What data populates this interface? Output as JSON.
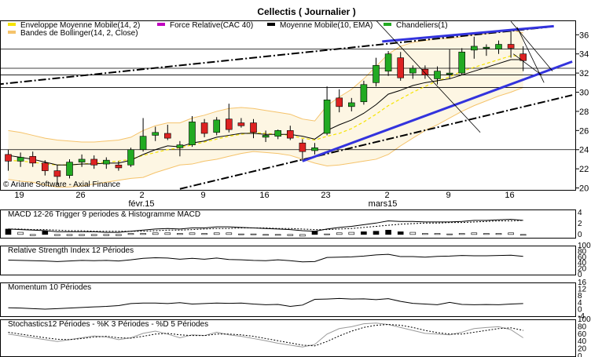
{
  "title": "Cellectis  ( Journalier )",
  "legend": [
    {
      "label": "Enveloppe Moyenne Mobile(14, 2)",
      "color": "#f5e400"
    },
    {
      "label": "Force Relative(CAC 40)",
      "color": "#c000c0"
    },
    {
      "label": "Moyenne Mobile(10, EMA)",
      "color": "#000000"
    },
    {
      "label": "Chandeliers(1)",
      "color": "#22aa22"
    },
    {
      "label": "Bandes de Bollinger(14, 2, Close)",
      "color": "#f5c36b"
    }
  ],
  "watermark": "© Ariane Software - Axial Finance",
  "chart_data": [
    {
      "type": "candlestick",
      "x_tick_labels": [
        "19",
        "26",
        "2",
        "9",
        "16",
        "23",
        "2",
        "9",
        "16"
      ],
      "month_labels": [
        "févr.15",
        "mars15"
      ],
      "y_ticks": [
        20,
        22,
        24,
        26,
        28,
        30,
        32,
        34,
        36
      ],
      "ylim": [
        19.8,
        37.5
      ],
      "grid": false,
      "horizontal_levels": [
        24,
        30.5,
        31.8,
        32.5,
        34.5
      ],
      "candles": [
        {
          "o": 23.5,
          "h": 24.0,
          "l": 21.8,
          "c": 22.8
        },
        {
          "o": 22.8,
          "h": 23.7,
          "l": 22.2,
          "c": 23.2
        },
        {
          "o": 23.3,
          "h": 23.8,
          "l": 22.2,
          "c": 22.6
        },
        {
          "o": 22.6,
          "h": 22.9,
          "l": 21.3,
          "c": 21.8
        },
        {
          "o": 21.8,
          "h": 22.4,
          "l": 20.3,
          "c": 21.2
        },
        {
          "o": 21.3,
          "h": 23.0,
          "l": 21.0,
          "c": 22.7
        },
        {
          "o": 22.7,
          "h": 23.5,
          "l": 22.2,
          "c": 23.0
        },
        {
          "o": 23.0,
          "h": 23.4,
          "l": 22.0,
          "c": 22.4
        },
        {
          "o": 22.5,
          "h": 23.2,
          "l": 22.0,
          "c": 22.9
        },
        {
          "o": 22.4,
          "h": 22.8,
          "l": 21.8,
          "c": 22.1
        },
        {
          "o": 22.4,
          "h": 24.2,
          "l": 22.2,
          "c": 24.0
        },
        {
          "o": 24.0,
          "h": 27.3,
          "l": 23.8,
          "c": 25.4
        },
        {
          "o": 25.5,
          "h": 26.4,
          "l": 24.9,
          "c": 25.8
        },
        {
          "o": 25.7,
          "h": 26.6,
          "l": 25.0,
          "c": 25.2
        },
        {
          "o": 24.2,
          "h": 24.9,
          "l": 23.3,
          "c": 24.5
        },
        {
          "o": 24.5,
          "h": 27.5,
          "l": 24.3,
          "c": 26.9
        },
        {
          "o": 26.8,
          "h": 27.2,
          "l": 25.3,
          "c": 25.7
        },
        {
          "o": 25.8,
          "h": 27.4,
          "l": 25.5,
          "c": 27.1
        },
        {
          "o": 27.2,
          "h": 28.8,
          "l": 25.8,
          "c": 26.1
        },
        {
          "o": 26.8,
          "h": 27.3,
          "l": 26.3,
          "c": 26.5
        },
        {
          "o": 26.8,
          "h": 27.2,
          "l": 25.2,
          "c": 25.8
        },
        {
          "o": 25.3,
          "h": 26.0,
          "l": 24.8,
          "c": 25.5
        },
        {
          "o": 25.4,
          "h": 26.1,
          "l": 25.1,
          "c": 26.0
        },
        {
          "o": 26.0,
          "h": 26.5,
          "l": 25.0,
          "c": 25.2
        },
        {
          "o": 24.7,
          "h": 25.1,
          "l": 22.8,
          "c": 23.8
        },
        {
          "o": 23.9,
          "h": 24.7,
          "l": 23.5,
          "c": 24.2
        },
        {
          "o": 25.7,
          "h": 30.6,
          "l": 25.5,
          "c": 29.2
        },
        {
          "o": 29.4,
          "h": 30.3,
          "l": 27.9,
          "c": 28.5
        },
        {
          "o": 28.5,
          "h": 29.4,
          "l": 28.0,
          "c": 28.9
        },
        {
          "o": 29.0,
          "h": 31.2,
          "l": 28.7,
          "c": 30.8
        },
        {
          "o": 31.0,
          "h": 33.6,
          "l": 30.6,
          "c": 32.8
        },
        {
          "o": 32.2,
          "h": 34.3,
          "l": 31.7,
          "c": 34.0
        },
        {
          "o": 33.6,
          "h": 34.2,
          "l": 31.2,
          "c": 31.5
        },
        {
          "o": 32.0,
          "h": 32.8,
          "l": 31.4,
          "c": 32.5
        },
        {
          "o": 32.4,
          "h": 32.8,
          "l": 31.4,
          "c": 31.8
        },
        {
          "o": 31.4,
          "h": 32.7,
          "l": 30.8,
          "c": 32.2
        },
        {
          "o": 32.0,
          "h": 34.5,
          "l": 31.4,
          "c": 32.0
        },
        {
          "o": 32.0,
          "h": 34.6,
          "l": 31.8,
          "c": 34.2
        },
        {
          "o": 34.4,
          "h": 35.8,
          "l": 33.5,
          "c": 34.8
        },
        {
          "o": 34.6,
          "h": 35.0,
          "l": 33.8,
          "c": 34.7
        },
        {
          "o": 34.5,
          "h": 35.4,
          "l": 34.0,
          "c": 35.0
        },
        {
          "o": 35.0,
          "h": 36.4,
          "l": 33.6,
          "c": 34.6
        },
        {
          "o": 34.0,
          "h": 34.8,
          "l": 32.2,
          "c": 33.3
        }
      ],
      "ema10": [
        23.4,
        23.2,
        23.0,
        22.7,
        22.4,
        22.4,
        22.5,
        22.5,
        22.6,
        22.6,
        22.9,
        23.5,
        24.0,
        24.4,
        24.3,
        24.7,
        24.9,
        25.3,
        25.5,
        25.7,
        25.7,
        25.6,
        25.6,
        25.6,
        25.4,
        25.1,
        26.0,
        26.6,
        27.1,
        27.8,
        28.7,
        29.8,
        30.2,
        30.7,
        31.0,
        31.2,
        31.4,
        31.8,
        32.2,
        32.6,
        33.0,
        33.4,
        33.4
      ],
      "bollinger_upper": [
        26.0,
        25.8,
        25.5,
        25.2,
        25.0,
        24.9,
        24.8,
        24.8,
        24.9,
        25.0,
        25.3,
        26.0,
        26.5,
        26.8,
        26.8,
        27.3,
        27.6,
        28.0,
        28.3,
        28.4,
        28.3,
        28.1,
        27.9,
        27.7,
        27.2,
        27.0,
        28.6,
        29.5,
        30.3,
        31.4,
        32.7,
        34.0,
        34.8,
        35.2,
        35.4,
        35.6,
        35.6,
        35.8,
        36.0,
        36.1,
        36.3,
        36.5,
        36.2
      ],
      "bollinger_lower": [
        20.9,
        20.7,
        20.6,
        20.3,
        20.1,
        20.1,
        20.2,
        20.4,
        20.6,
        20.8,
        21.0,
        21.1,
        21.6,
        22.0,
        22.4,
        22.5,
        22.8,
        23.0,
        23.3,
        23.6,
        23.8,
        23.7,
        23.6,
        23.4,
        23.0,
        22.6,
        22.3,
        22.4,
        22.6,
        22.8,
        23.0,
        23.5,
        24.4,
        25.2,
        26.0,
        26.6,
        27.3,
        28.0,
        28.6,
        29.1,
        29.6,
        30.0,
        30.5
      ],
      "envelope_ma": [
        22.9,
        22.8,
        22.7,
        22.5,
        22.4,
        22.4,
        22.5,
        22.6,
        22.7,
        22.8,
        23.0,
        23.4,
        23.7,
        24.0,
        24.2,
        24.5,
        24.8,
        25.1,
        25.4,
        25.6,
        25.8,
        25.7,
        25.6,
        25.5,
        25.2,
        25.0,
        25.4,
        25.7,
        26.2,
        26.9,
        27.7,
        28.6,
        29.3,
        30.0,
        30.6,
        31.2,
        31.6,
        32.2,
        32.6,
        33.0,
        33.4,
        33.8,
        33.8
      ],
      "trendlines": [
        {
          "style": "dashdot",
          "color": "#000000",
          "x1": -1,
          "y1": 30.8,
          "x2": 44,
          "y2": 36.8
        },
        {
          "style": "dashdot",
          "color": "#000000",
          "x1": 14,
          "y1": 19.9,
          "x2": 46,
          "y2": 29.7
        },
        {
          "style": "solid",
          "color": "#3333dd",
          "x1": 24,
          "y1": 22.8,
          "x2": 46,
          "y2": 33.2
        },
        {
          "style": "solid",
          "color": "#3333dd",
          "x1": 30.5,
          "y1": 35.3,
          "x2": 44.5,
          "y2": 36.9
        },
        {
          "style": "thin",
          "color": "#000000",
          "x1": 30,
          "y1": 37.5,
          "x2": 38.5,
          "y2": 25.8
        },
        {
          "style": "thin",
          "color": "#000000",
          "x1": 41,
          "y1": 37.4,
          "x2": 44.4,
          "y2": 32.2
        },
        {
          "style": "thin",
          "color": "#000000",
          "x1": 41.5,
          "y1": 36.8,
          "x2": 43.7,
          "y2": 31.0
        },
        {
          "style": "thin",
          "color": "#000000",
          "x1": 41.2,
          "y1": 34.0,
          "x2": 43.5,
          "y2": 31.8
        }
      ]
    },
    {
      "type": "bar",
      "title": "MACD 12-26   Trigger 9 periodes & Histogramme MACD",
      "y_ticks": [
        4,
        2,
        0
      ],
      "ylim": [
        -0.6,
        4.6
      ],
      "macd": [
        1.0,
        0.9,
        0.8,
        0.7,
        0.5,
        0.5,
        0.5,
        0.5,
        0.4,
        0.4,
        0.6,
        0.8,
        1.0,
        1.1,
        1.0,
        1.2,
        1.2,
        1.4,
        1.4,
        1.3,
        1.2,
        1.1,
        1.0,
        0.9,
        0.7,
        0.6,
        1.0,
        1.3,
        1.5,
        1.8,
        2.1,
        2.5,
        2.4,
        2.4,
        2.3,
        2.3,
        2.3,
        2.4,
        2.6,
        2.6,
        2.7,
        2.8,
        2.6
      ],
      "trigger": [
        1.0,
        1.0,
        0.9,
        0.9,
        0.8,
        0.7,
        0.7,
        0.6,
        0.6,
        0.6,
        0.6,
        0.6,
        0.7,
        0.8,
        0.8,
        0.9,
        1.0,
        1.1,
        1.1,
        1.2,
        1.2,
        1.2,
        1.1,
        1.1,
        1.0,
        0.9,
        0.9,
        1.0,
        1.1,
        1.3,
        1.5,
        1.7,
        1.9,
        2.0,
        2.1,
        2.1,
        2.2,
        2.2,
        2.3,
        2.4,
        2.5,
        2.5,
        2.6
      ],
      "histogram": [
        1.0,
        0.4,
        -0.2,
        0.6,
        -0.2,
        -0.2,
        -0.2,
        -0.2,
        -0.2,
        -0.2,
        0.2,
        0.2,
        0.3,
        0.3,
        0.2,
        0.3,
        0.2,
        0.3,
        0.3,
        0.1,
        0.1,
        -0.1,
        -0.1,
        -0.2,
        -0.3,
        0.6,
        0.1,
        0.3,
        0.4,
        0.5,
        0.6,
        0.8,
        0.5,
        0.4,
        0.2,
        0.2,
        0.1,
        0.2,
        0.3,
        0.2,
        0.2,
        0.3,
        0.0
      ]
    },
    {
      "type": "line",
      "title": "Relative Strength Index 12 Périodes",
      "y_ticks": [
        100,
        80,
        60,
        40,
        20,
        0
      ],
      "ylim": [
        0,
        100
      ],
      "values": [
        50,
        49,
        48,
        47,
        45,
        47,
        49,
        48,
        49,
        47,
        51,
        56,
        58,
        57,
        53,
        56,
        53,
        57,
        52,
        51,
        49,
        48,
        51,
        48,
        44,
        45,
        59,
        60,
        61,
        64,
        68,
        70,
        62,
        62,
        60,
        63,
        64,
        66,
        65,
        65,
        66,
        67,
        63
      ]
    },
    {
      "type": "line",
      "title": "Momentum 10 Périodes",
      "y_ticks": [
        16,
        12,
        8,
        4,
        0,
        -4
      ],
      "ylim": [
        -4,
        16
      ],
      "values": [
        1,
        0.8,
        0.5,
        0.2,
        0.5,
        0.8,
        1.2,
        1.5,
        1.8,
        2.3,
        3.5,
        3.8,
        3.8,
        3.5,
        4,
        3.2,
        3.5,
        3.8,
        3.6,
        3.8,
        3.2,
        2.8,
        3,
        1.8,
        2.6,
        6.0,
        6.2,
        6.5,
        6.2,
        6.3,
        5.8,
        6.4,
        4.8,
        3.6,
        3.2,
        2.8,
        4.2,
        3.0,
        2.8,
        2.9,
        2.8,
        3.2,
        3.5
      ]
    },
    {
      "type": "line",
      "title": "Stochastics12 Périodes  -  %K 3 Périodes  -  %D 5 Périodes",
      "y_ticks": [
        100,
        80,
        60,
        40,
        20,
        0
      ],
      "ylim": [
        0,
        100
      ],
      "k": [
        60,
        55,
        50,
        45,
        40,
        45,
        50,
        55,
        52,
        45,
        50,
        62,
        68,
        60,
        50,
        58,
        56,
        65,
        58,
        54,
        48,
        42,
        35,
        30,
        25,
        32,
        60,
        75,
        80,
        88,
        90,
        86,
        78,
        70,
        62,
        60,
        58,
        65,
        75,
        78,
        80,
        72,
        50
      ],
      "d": [
        65,
        60,
        55,
        50,
        46,
        45,
        48,
        52,
        54,
        50,
        49,
        54,
        60,
        62,
        58,
        56,
        56,
        60,
        60,
        58,
        54,
        48,
        42,
        36,
        30,
        28,
        40,
        55,
        68,
        78,
        84,
        86,
        84,
        78,
        70,
        64,
        60,
        60,
        65,
        70,
        75,
        77,
        70
      ]
    }
  ]
}
